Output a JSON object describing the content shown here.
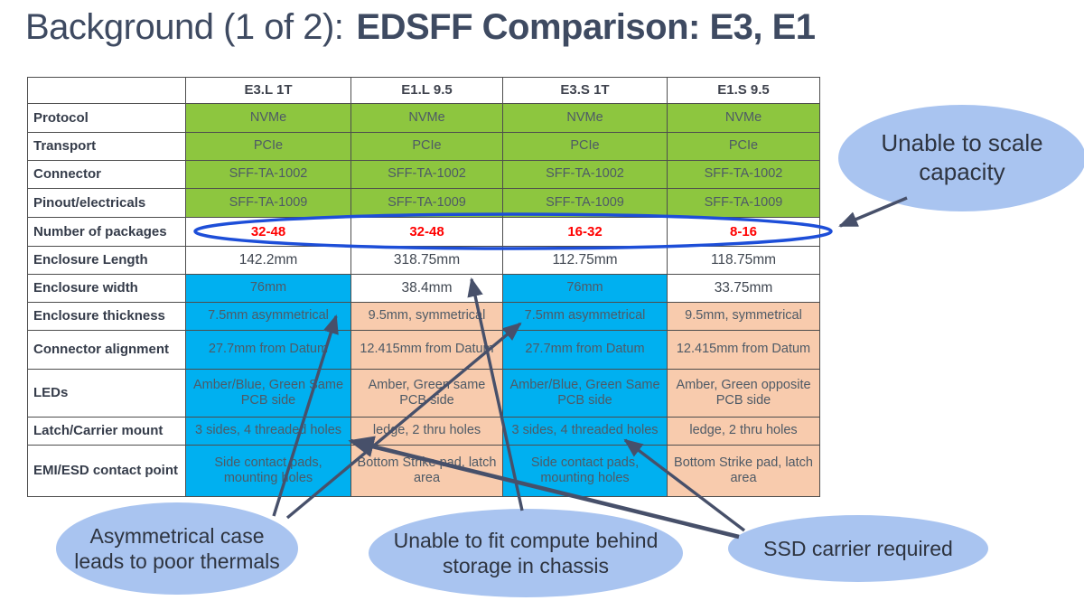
{
  "title": {
    "prefix": "Background (1 of 2):",
    "emphasis": "EDSFF Comparison: E3, E1"
  },
  "table": {
    "corner": "",
    "columns": [
      "E3.L 1T",
      "E1.L 9.5",
      "E3.S 1T",
      "E1.S 9.5"
    ],
    "rows": [
      {
        "label": "Protocol",
        "bgs": [
          "green",
          "green",
          "green",
          "green"
        ],
        "cells": [
          "NVMe",
          "NVMe",
          "NVMe",
          "NVMe"
        ]
      },
      {
        "label": "Transport",
        "bgs": [
          "green",
          "green",
          "green",
          "green"
        ],
        "cells": [
          "PCIe",
          "PCIe",
          "PCIe",
          "PCIe"
        ]
      },
      {
        "label": "Connector",
        "bgs": [
          "green",
          "green",
          "green",
          "green"
        ],
        "cells": [
          "SFF-TA-1002",
          "SFF-TA-1002",
          "SFF-TA-1002",
          "SFF-TA-1002"
        ]
      },
      {
        "label": "Pinout/electricals",
        "bgs": [
          "green",
          "green",
          "green",
          "green"
        ],
        "cells": [
          "SFF-TA-1009",
          "SFF-TA-1009",
          "SFF-TA-1009",
          "SFF-TA-1009"
        ]
      },
      {
        "label": "Number of packages",
        "bgs": [
          "white",
          "white",
          "white",
          "white"
        ],
        "red": true,
        "cells": [
          "32-48",
          "32-48",
          "16-32",
          "8-16"
        ]
      },
      {
        "label": "Enclosure Length",
        "bgs": [
          "white",
          "white",
          "white",
          "white"
        ],
        "cells": [
          "142.2mm",
          "318.75mm",
          "112.75mm",
          "118.75mm"
        ]
      },
      {
        "label": "Enclosure width",
        "bgs": [
          "cyan",
          "white",
          "cyan",
          "white"
        ],
        "cells": [
          "76mm",
          "38.4mm",
          "76mm",
          "33.75mm"
        ]
      },
      {
        "label": "Enclosure thickness",
        "bgs": [
          "cyan",
          "peach",
          "cyan",
          "peach"
        ],
        "cells": [
          "7.5mm asymmetrical",
          "9.5mm, symmetrical",
          "7.5mm asymmetrical",
          "9.5mm, symmetrical"
        ]
      },
      {
        "label": "Connector alignment",
        "bgs": [
          "cyan",
          "peach",
          "cyan",
          "peach"
        ],
        "cells": [
          "27.7mm from Datum",
          "12.415mm from Datum",
          "27.7mm from Datum",
          "12.415mm from Datum"
        ]
      },
      {
        "label": "LEDs",
        "bgs": [
          "cyan",
          "peach",
          "cyan",
          "peach"
        ],
        "cells": [
          "Amber/Blue, Green Same PCB side",
          "Amber, Green same PCB side",
          "Amber/Blue, Green Same PCB side",
          "Amber, Green opposite PCB side"
        ]
      },
      {
        "label": "Latch/Carrier mount",
        "bgs": [
          "cyan",
          "peach",
          "cyan",
          "peach"
        ],
        "cells": [
          "3 sides, 4 threaded holes",
          "ledge, 2 thru holes",
          "3 sides, 4 threaded holes",
          "ledge, 2 thru holes"
        ]
      },
      {
        "label": "EMI/ESD contact point",
        "bgs": [
          "cyan",
          "peach",
          "cyan",
          "peach"
        ],
        "cells": [
          "Side contact pads, mounting holes",
          "Bottom Strike pad, latch area",
          "Side contact pads, mounting holes",
          "Bottom Strike pad, latch area"
        ]
      }
    ]
  },
  "callouts": [
    {
      "text": "Unable to scale capacity"
    },
    {
      "text": "Asymmetrical case leads to poor thermals"
    },
    {
      "text": "Unable to fit compute behind storage in chassis"
    },
    {
      "text": "SSD carrier required"
    }
  ],
  "colors": {
    "cell_green": "#8dc63f",
    "cell_cyan": "#00b0f0",
    "cell_peach": "#f8cbad",
    "red_values": "#ff0000",
    "callout_fill": "#a9c4f0",
    "packages_ellipse": "#1d4ed8",
    "arrow": "#47506a",
    "title_text": "#3e4a61"
  }
}
